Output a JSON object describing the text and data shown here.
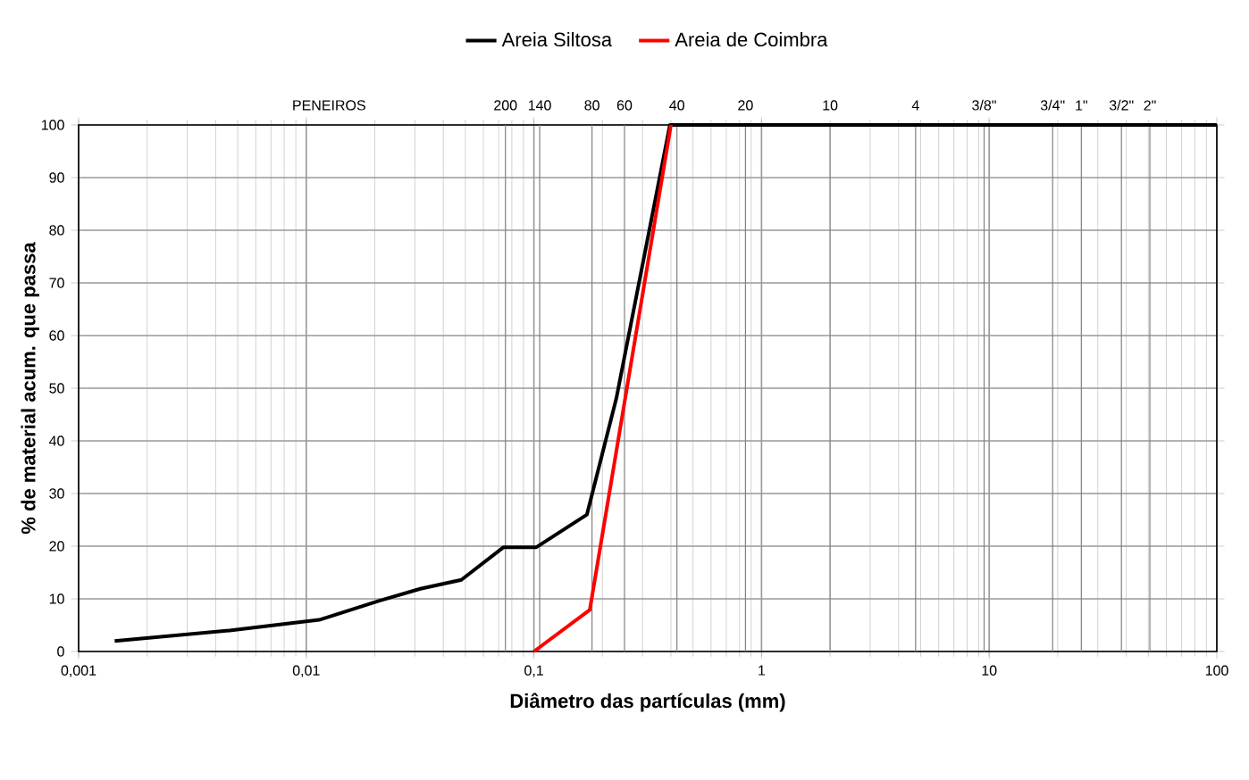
{
  "chart_data": {
    "type": "line",
    "xlabel": "Diâmetro das partículas (mm)",
    "ylabel": "% de material acum. que passa",
    "log": "x",
    "grid": true,
    "legend": "top",
    "line_style": "solid",
    "marker": "none",
    "xlim": [
      0.001,
      100
    ],
    "xticks": [
      {
        "value": 0.001,
        "label": "0,001"
      },
      {
        "value": 0.01,
        "label": "0,01"
      },
      {
        "value": 0.1,
        "label": "0,1"
      },
      1,
      10,
      100
    ],
    "ylim": [
      0,
      100
    ],
    "yticks": [
      0,
      10,
      20,
      30,
      40,
      50,
      60,
      70,
      80,
      90,
      100
    ],
    "annotations": [
      "PENEIROS",
      "200",
      "140",
      "80",
      "60",
      "40",
      "20",
      "10",
      "4",
      "3/8\"",
      "3/4\"",
      "1\"",
      "3/2\"",
      "2\""
    ],
    "ref_lines": [
      {
        "axis": "x",
        "value": 0.075,
        "color": "#808080"
      },
      {
        "axis": "x",
        "value": 0.106,
        "color": "#808080"
      },
      {
        "axis": "x",
        "value": 0.18,
        "color": "#808080"
      },
      {
        "axis": "x",
        "value": 0.25,
        "color": "#808080"
      },
      {
        "axis": "x",
        "value": 0.425,
        "color": "#808080"
      },
      {
        "axis": "x",
        "value": 0.85,
        "color": "#808080"
      },
      {
        "axis": "x",
        "value": 2.0,
        "color": "#808080"
      },
      {
        "axis": "x",
        "value": 4.75,
        "color": "#808080"
      },
      {
        "axis": "x",
        "value": 9.5,
        "color": "#808080"
      },
      {
        "axis": "x",
        "value": 19.0,
        "color": "#808080"
      },
      {
        "axis": "x",
        "value": 25.4,
        "color": "#808080"
      },
      {
        "axis": "x",
        "value": 38.1,
        "color": "#808080"
      },
      {
        "axis": "x",
        "value": 50.8,
        "color": "#808080"
      }
    ],
    "series": [
      {
        "name": "Areia Siltosa",
        "color": "#000000",
        "x": [
          0.00144,
          0.0046,
          0.0114,
          0.0208,
          0.0317,
          0.048,
          0.0736,
          0.1026,
          0.171,
          0.23,
          0.396,
          100
        ],
        "values": [
          2,
          4,
          6,
          9.6,
          11.9,
          13.6,
          19.8,
          19.8,
          26,
          48,
          100,
          100
        ]
      },
      {
        "name": "Areia de Coimbra",
        "color": "#ff0000",
        "x": [
          0.1,
          0.176,
          0.4
        ],
        "values": [
          0,
          7.9,
          100
        ]
      }
    ]
  }
}
